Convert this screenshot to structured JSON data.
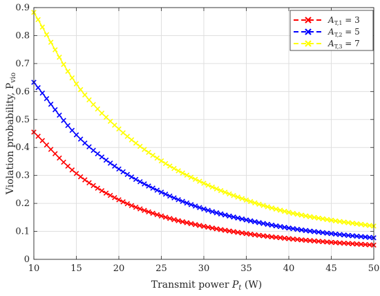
{
  "chart_data": {
    "type": "line",
    "xlabel": "Transmit power P_t (W)",
    "ylabel": "Violation probability, P_vio",
    "xlim": [
      10,
      50
    ],
    "ylim": [
      0,
      0.9
    ],
    "xticks": [
      "10",
      "15",
      "20",
      "25",
      "30",
      "35",
      "40",
      "45",
      "50"
    ],
    "yticks": [
      "0",
      "0.1",
      "0.2",
      "0.3",
      "0.4",
      "0.5",
      "0.6",
      "0.7",
      "0.8",
      "0.9"
    ],
    "grid": true,
    "legend_position": "top-right",
    "marker": "x",
    "x_start": 10,
    "x_end": 50,
    "x_step": 0.5,
    "series": [
      {
        "name": "A_T,1 = 3",
        "color": "#ff0000",
        "x": [
          10,
          15,
          20,
          25,
          30,
          35,
          40,
          45,
          50
        ],
        "values": [
          0.455,
          0.307,
          0.213,
          0.155,
          0.118,
          0.092,
          0.074,
          0.061,
          0.051
        ]
      },
      {
        "name": "A_T,2 = 5",
        "color": "#0000ff",
        "x": [
          10,
          15,
          20,
          25,
          30,
          35,
          40,
          45,
          50
        ],
        "values": [
          0.633,
          0.445,
          0.323,
          0.24,
          0.18,
          0.141,
          0.112,
          0.092,
          0.077
        ]
      },
      {
        "name": "A_T,3 = 7",
        "color": "#ffff00",
        "x": [
          10,
          15,
          20,
          25,
          30,
          35,
          40,
          45,
          50
        ],
        "values": [
          0.883,
          0.627,
          0.466,
          0.352,
          0.272,
          0.212,
          0.168,
          0.14,
          0.119
        ]
      }
    ],
    "legend": [
      {
        "prefix": "A",
        "sub": "T,1",
        "suffix": " = 3"
      },
      {
        "prefix": "A",
        "sub": "T,2",
        "suffix": " = 5"
      },
      {
        "prefix": "A",
        "sub": "T,3",
        "suffix": " = 7"
      }
    ],
    "axis_text": {
      "x_main": "Transmit power ",
      "x_var": "P",
      "x_var_sub": "t",
      "x_unit": " (W)",
      "y_main": "Violation probability, P",
      "y_sub": "vio"
    }
  }
}
